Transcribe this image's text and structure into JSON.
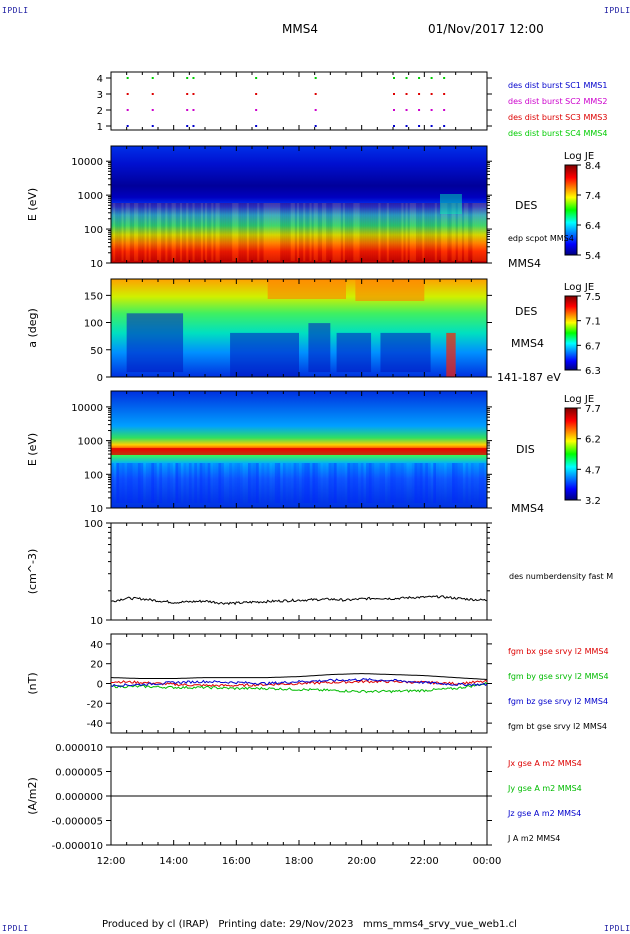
{
  "header": {
    "corner_left_top": "IPDLI",
    "corner_right_top": "IPDLI",
    "spacecraft": "MMS4",
    "datetime": "01/Nov/2017 12:00",
    "corner_left_bottom": "IPDLI",
    "corner_right_bottom": "IPDLI"
  },
  "footer": {
    "text": "Produced by cl (IRAP)   Printing date: 29/Nov/2023   mms_mms4_srvy_vue_web1.cl"
  },
  "colors": {
    "sc1": "#0000cc",
    "sc2": "#cc00cc",
    "sc3": "#dd0000",
    "sc4": "#00cc00",
    "bx": "#dd0000",
    "by": "#00bb00",
    "bz": "#0000cc",
    "bt": "#000000"
  },
  "chart_data": [
    {
      "type": "scatter",
      "panel": "burst",
      "yticks": [
        "1",
        "2",
        "3",
        "4"
      ],
      "legend": [
        "des dist burst SC1 MMS1",
        "des dist burst SC2 MMS2",
        "des dist burst SC3 MMS3",
        "des dist burst SC4 MMS4"
      ],
      "x_hours": [
        0.5,
        1.3,
        2.4,
        2.6,
        4.6,
        6.5,
        9.0,
        9.4,
        9.8,
        10.2,
        10.6
      ]
    },
    {
      "type": "heatmap",
      "panel": "des-energy",
      "ylabel": "E (eV)",
      "yticks": [
        "10",
        "100",
        "1000",
        "10000"
      ],
      "yscale": "log",
      "ylim": [
        10,
        40000
      ],
      "colorbar": {
        "title": "Log JE",
        "ticks": [
          "8.4",
          "7.4",
          "6.4",
          "5.4"
        ]
      },
      "right_labels": [
        "DES",
        "edp scpot MMS4",
        "MMS4"
      ]
    },
    {
      "type": "heatmap",
      "panel": "des-pitch",
      "ylabel": "a (deg)",
      "yticks": [
        "0",
        "50",
        "100",
        "150"
      ],
      "ylim": [
        0,
        180
      ],
      "colorbar": {
        "title": "Log JE",
        "ticks": [
          "7.5",
          "7.1",
          "6.7",
          "6.3"
        ]
      },
      "right_labels": [
        "DES",
        "MMS4",
        "141-187 eV"
      ]
    },
    {
      "type": "heatmap",
      "panel": "dis-energy",
      "ylabel": "E (eV)",
      "yticks": [
        "10",
        "100",
        "1000",
        "10000"
      ],
      "yscale": "log",
      "ylim": [
        10,
        25000
      ],
      "colorbar": {
        "title": "Log JE",
        "ticks": [
          "7.7",
          "6.2",
          "4.7",
          "3.2"
        ]
      },
      "right_labels": [
        "DIS",
        "MMS4"
      ]
    },
    {
      "type": "line",
      "panel": "density",
      "ylabel": "(cm^-3)",
      "yscale": "log",
      "ylim": [
        10,
        100
      ],
      "yticks": [
        "10",
        "100"
      ],
      "series": [
        {
          "name": "des numberdensity fast M",
          "x_hours": [
            0,
            0.5,
            1.0,
            1.5,
            2.0,
            2.5,
            3.0,
            3.5,
            4.0,
            4.5,
            5.0,
            5.5,
            6.0,
            6.5,
            7.0,
            7.5,
            8.0,
            8.5,
            9.0,
            9.5,
            10.0,
            10.5,
            11.0,
            11.5,
            12.0
          ],
          "values": [
            15.5,
            16.8,
            16.5,
            15.8,
            15.2,
            15.4,
            15.7,
            15.0,
            14.9,
            15.3,
            15.5,
            15.8,
            16.0,
            16.2,
            16.4,
            16.0,
            16.5,
            16.8,
            16.6,
            17.0,
            17.2,
            17.4,
            16.8,
            16.3,
            16.0
          ]
        }
      ]
    },
    {
      "type": "line",
      "panel": "magnetic-field",
      "ylabel": "(nT)",
      "ylim": [
        -50,
        50
      ],
      "yticks": [
        "-40",
        "-20",
        "0",
        "20",
        "40"
      ],
      "x_hours": [
        0,
        1,
        2,
        3,
        4,
        5,
        6,
        7,
        8,
        9,
        10,
        11,
        12
      ],
      "series": [
        {
          "name": "fgm bx gse srvy l2 MMS4",
          "values": [
            2,
            1,
            -1,
            -2,
            -2,
            -1,
            0,
            1,
            2,
            2,
            1,
            0,
            2
          ]
        },
        {
          "name": "fgm by gse srvy l2 MMS4",
          "values": [
            -3,
            -3,
            -4,
            -4,
            -5,
            -5,
            -6,
            -7,
            -8,
            -8,
            -7,
            -5,
            0
          ]
        },
        {
          "name": "fgm bz gse srvy l2 MMS4",
          "values": [
            -2,
            -1,
            1,
            2,
            1,
            0,
            2,
            3,
            4,
            3,
            1,
            -1,
            -1
          ]
        },
        {
          "name": "fgm bt gse srvy l2 MMS4",
          "values": [
            6,
            5,
            5,
            6,
            6,
            6,
            7,
            9,
            10,
            9,
            8,
            6,
            4
          ]
        }
      ]
    },
    {
      "type": "line",
      "panel": "current-density",
      "ylabel": "(A/m2)",
      "ylim": [
        -1e-05,
        1e-05
      ],
      "yticks": [
        "0.000010",
        "0.000005",
        "0.000000",
        "-0.000005",
        "-0.000010"
      ],
      "xticks": [
        "12:00",
        "14:00",
        "16:00",
        "18:00",
        "20:00",
        "22:00",
        "00:00"
      ],
      "series": [
        {
          "name": "Jx gse A m2 MMS4",
          "values": [
            0,
            0,
            0,
            0,
            0,
            0,
            0
          ]
        },
        {
          "name": "Jy gse A m2 MMS4",
          "values": [
            0,
            0,
            0,
            0,
            0,
            0,
            0
          ]
        },
        {
          "name": "Jz gse A m2 MMS4",
          "values": [
            0,
            0,
            0,
            0,
            0,
            0,
            0
          ]
        },
        {
          "name": "J A m2 MMS4",
          "values": [
            0,
            0,
            0,
            0,
            0,
            0,
            0
          ]
        }
      ]
    }
  ]
}
